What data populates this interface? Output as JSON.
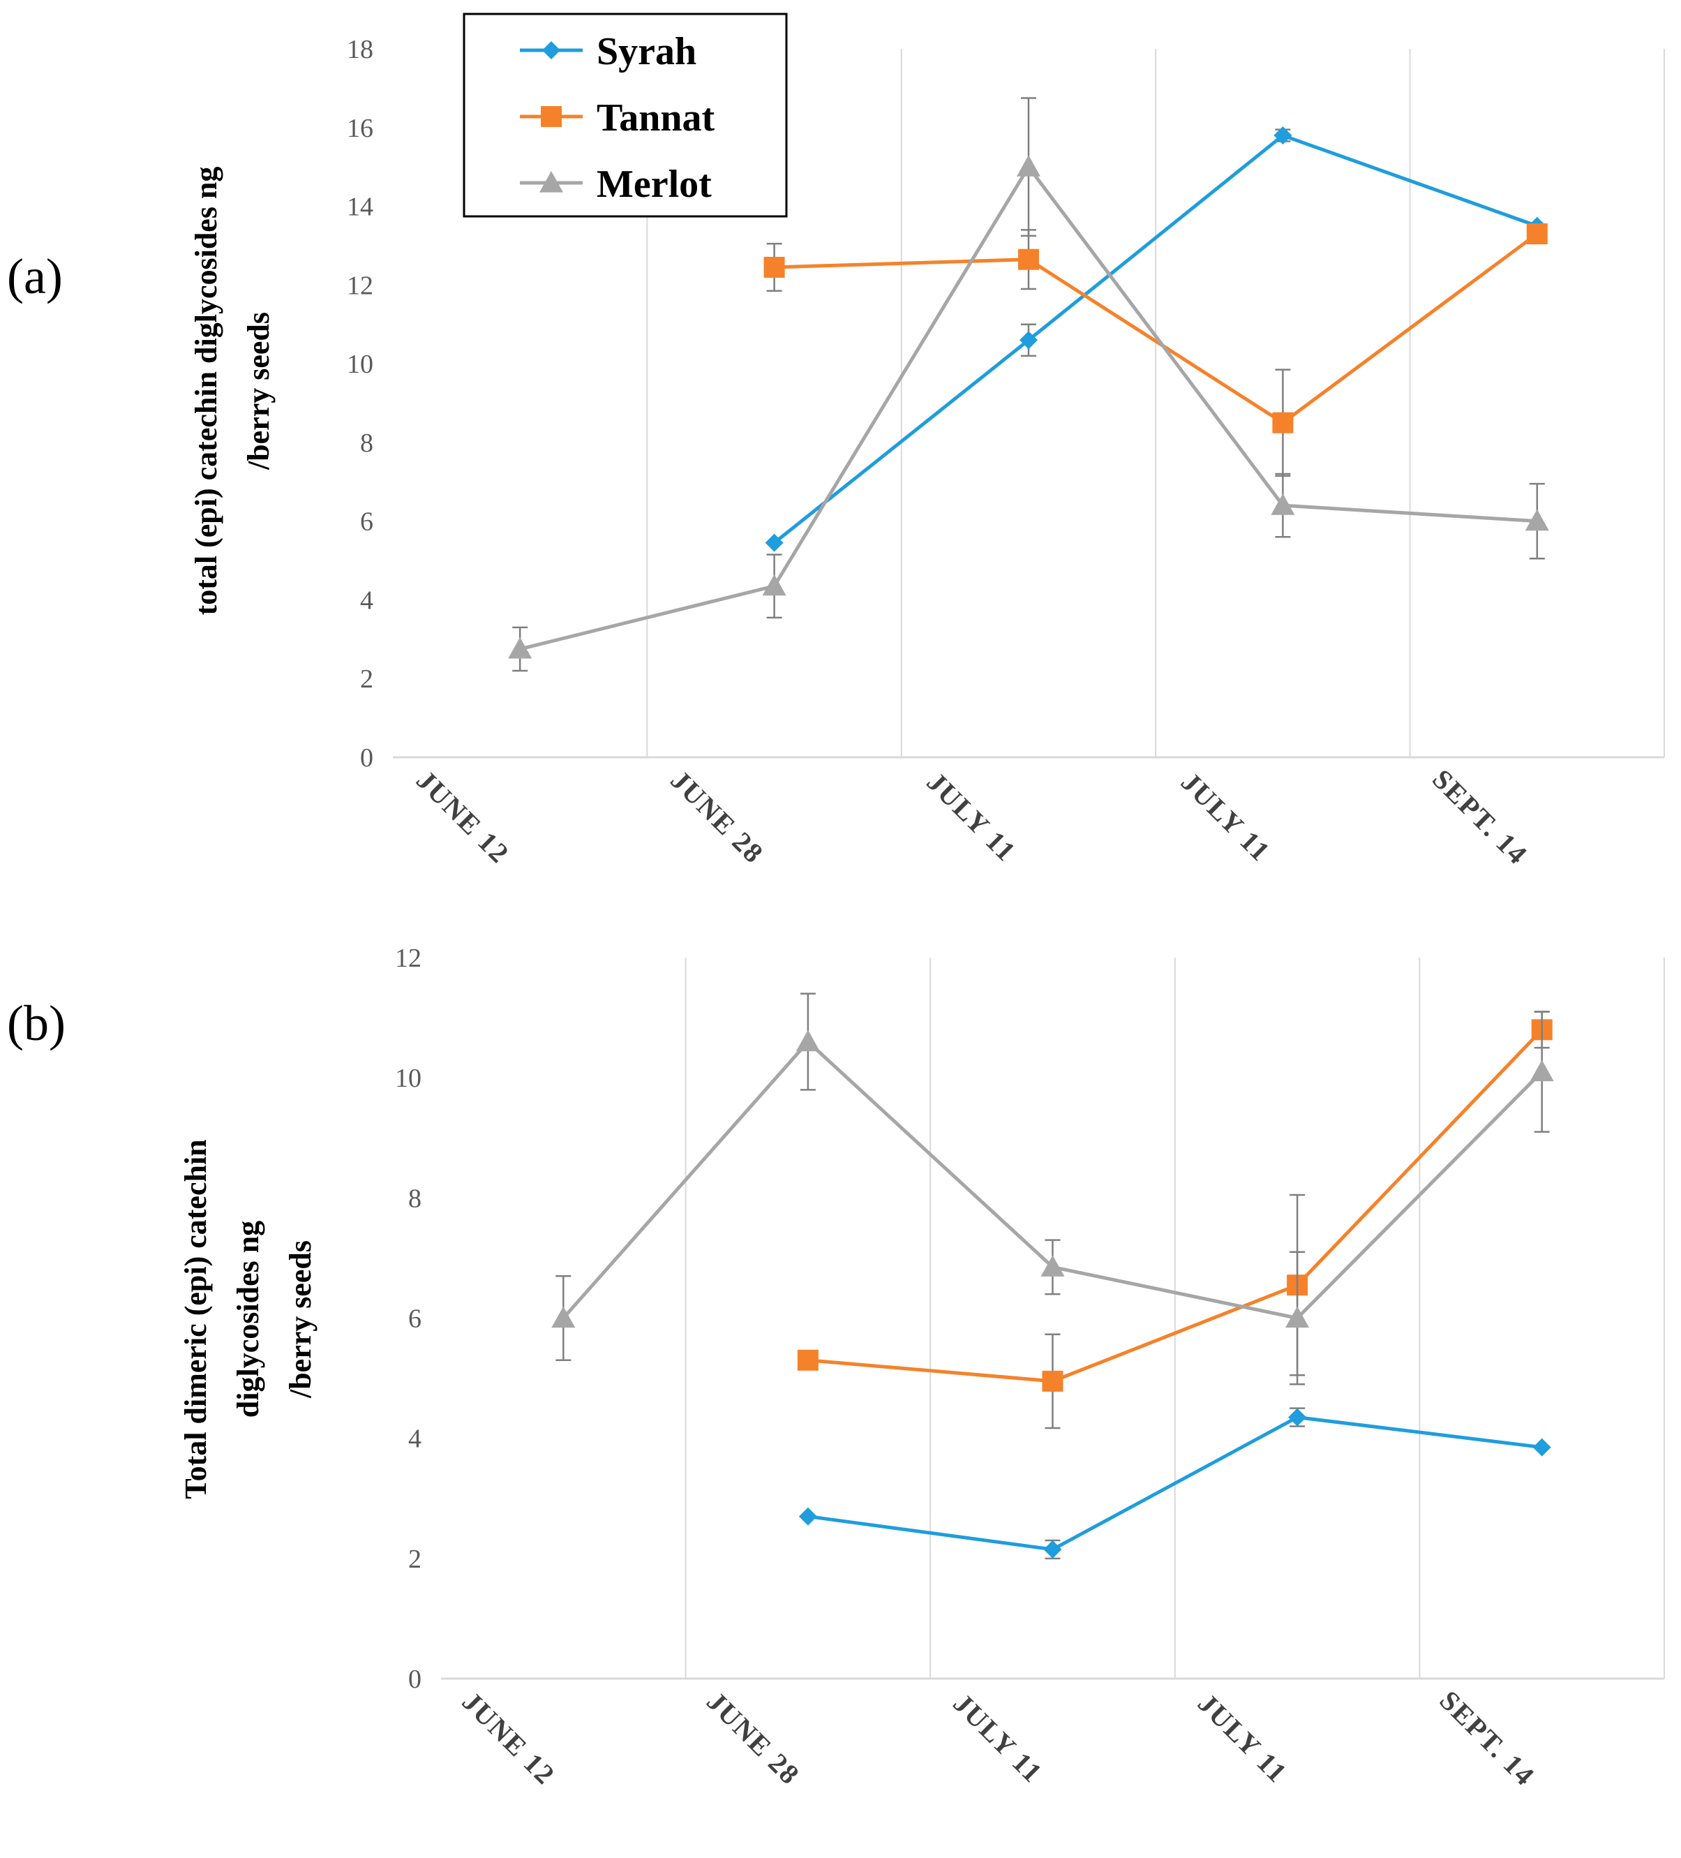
{
  "chart_data": [
    {
      "type": "line",
      "panel_label": "(a)",
      "ylabel_lines": [
        "total (epi) catechin diglycosides ng",
        "/berry seeds"
      ],
      "categories": [
        "JUNE 12",
        "JUNE 28",
        "JULY 11",
        "JULY 11",
        "SEPT. 14"
      ],
      "ylim": [
        0,
        18
      ],
      "yticks": [
        "0",
        "2",
        "4",
        "6",
        "8",
        "10",
        "12",
        "14",
        "16",
        "18"
      ],
      "grid": "vertical",
      "legend": {
        "position": "top-left",
        "entries": [
          "Syrah",
          "Tannat",
          "Merlot"
        ]
      },
      "series": [
        {
          "name": "Syrah",
          "color": "#1f9ddc",
          "marker": "diamond",
          "values": [
            null,
            5.45,
            10.6,
            15.8,
            13.5
          ],
          "errors": [
            null,
            0,
            0.4,
            0.15,
            0
          ]
        },
        {
          "name": "Tannat",
          "color": "#f5822a",
          "marker": "square",
          "values": [
            null,
            12.45,
            12.65,
            8.5,
            13.3
          ],
          "errors": [
            null,
            0.6,
            0.75,
            1.35,
            0
          ]
        },
        {
          "name": "Merlot",
          "color": "#a6a6a6",
          "marker": "triangle",
          "values": [
            2.75,
            4.35,
            15.0,
            6.4,
            6.0
          ],
          "errors": [
            0.55,
            0.8,
            1.75,
            0.8,
            0.95
          ]
        }
      ]
    },
    {
      "type": "line",
      "panel_label": "(b)",
      "ylabel_lines": [
        "Total dimeric (epi) catechin",
        "diglycosides ng",
        "/berry seeds"
      ],
      "categories": [
        "JUNE 12",
        "JUNE 28",
        "JULY 11",
        "JULY 11",
        "SEPT. 14"
      ],
      "ylim": [
        0,
        12
      ],
      "yticks": [
        "0",
        "2",
        "4",
        "6",
        "8",
        "10",
        "12"
      ],
      "grid": "vertical",
      "series": [
        {
          "name": "Syrah",
          "color": "#1f9ddc",
          "marker": "diamond",
          "values": [
            null,
            2.7,
            2.15,
            4.35,
            3.85
          ],
          "errors": [
            null,
            0,
            0.15,
            0.15,
            0
          ]
        },
        {
          "name": "Tannat",
          "color": "#f5822a",
          "marker": "square",
          "values": [
            null,
            5.3,
            4.95,
            6.55,
            10.8
          ],
          "errors": [
            null,
            0,
            0.78,
            1.5,
            0.3
          ]
        },
        {
          "name": "Merlot",
          "color": "#a6a6a6",
          "marker": "triangle",
          "values": [
            6.0,
            10.6,
            6.85,
            6.0,
            10.1
          ],
          "errors": [
            0.7,
            0.8,
            0.45,
            1.1,
            1.0
          ]
        }
      ]
    }
  ]
}
